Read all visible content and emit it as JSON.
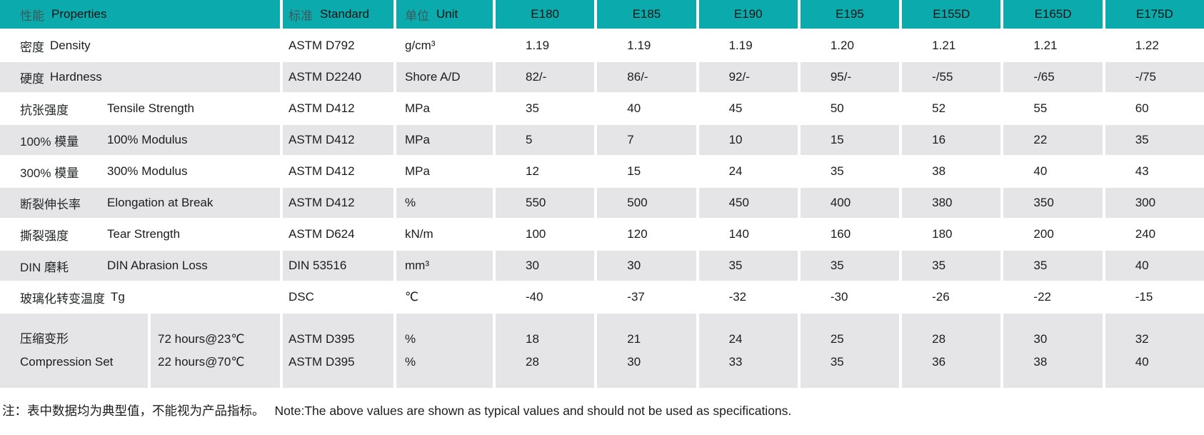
{
  "table": {
    "header": {
      "property": {
        "zh": "性能",
        "en": "Properties"
      },
      "standard": {
        "zh": "标准",
        "en": "Standard"
      },
      "unit": {
        "zh": "单位",
        "en": "Unit"
      },
      "grades": [
        "E180",
        "E185",
        "E190",
        "E195",
        "E155D",
        "E165D",
        "E175D"
      ]
    },
    "rows": [
      {
        "zh": "密度",
        "en": "Density",
        "tab": false,
        "standard": "ASTM D792",
        "unit": "g/cm³",
        "values": [
          "1.19",
          "1.19",
          "1.19",
          "1.20",
          "1.21",
          "1.21",
          "1.22"
        ]
      },
      {
        "zh": "硬度",
        "en": "Hardness",
        "tab": false,
        "standard": "ASTM D2240",
        "unit": "Shore A/D",
        "values": [
          "82/-",
          "86/-",
          "92/-",
          "95/-",
          "-/55",
          "-/65",
          "-/75"
        ]
      },
      {
        "zh": "抗张强度",
        "en": "Tensile Strength",
        "tab": true,
        "standard": "ASTM D412",
        "unit": "MPa",
        "values": [
          "35",
          "40",
          "45",
          "50",
          "52",
          "55",
          "60"
        ]
      },
      {
        "zh": "100% 模量",
        "en": "100% Modulus",
        "tab": true,
        "standard": "ASTM D412",
        "unit": "MPa",
        "values": [
          "5",
          "7",
          "10",
          "15",
          "16",
          "22",
          "35"
        ]
      },
      {
        "zh": "300% 模量",
        "en": "300% Modulus",
        "tab": true,
        "standard": "ASTM D412",
        "unit": "MPa",
        "values": [
          "12",
          "15",
          "24",
          "35",
          "38",
          "40",
          "43"
        ]
      },
      {
        "zh": "断裂伸长率",
        "en": "Elongation at Break",
        "tab": true,
        "standard": "ASTM D412",
        "unit": "%",
        "values": [
          "550",
          "500",
          "450",
          "400",
          "380",
          "350",
          "300"
        ]
      },
      {
        "zh": "撕裂强度",
        "en": "Tear Strength",
        "tab": true,
        "standard": "ASTM D624",
        "unit": "kN/m",
        "values": [
          "100",
          "120",
          "140",
          "160",
          "180",
          "200",
          "240"
        ]
      },
      {
        "zh": "DIN 磨耗",
        "en": "DIN Abrasion Loss",
        "tab": true,
        "standard": "DIN 53516",
        "unit": "mm³",
        "values": [
          "30",
          "30",
          "35",
          "35",
          "35",
          "35",
          "40"
        ]
      },
      {
        "zh": "玻璃化转变温度",
        "en": "Tg",
        "tab": false,
        "standard": "DSC",
        "unit": "℃",
        "values": [
          "-40",
          "-37",
          "-32",
          "-30",
          "-26",
          "-22",
          "-15"
        ]
      }
    ],
    "compression": {
      "names": [
        "压缩变形",
        "Compression Set"
      ],
      "conditions": [
        "72 hours@23℃",
        "22 hours@70℃"
      ],
      "standards": [
        "ASTM D395",
        "ASTM D395"
      ],
      "units": [
        "%",
        "%"
      ],
      "values": [
        [
          "18",
          "28"
        ],
        [
          "21",
          "30"
        ],
        [
          "24",
          "33"
        ],
        [
          "25",
          "35"
        ],
        [
          "28",
          "36"
        ],
        [
          "30",
          "38"
        ],
        [
          "32",
          "40"
        ]
      ]
    }
  },
  "footnote": {
    "zh": "注：表中数据均为典型值，不能视为产品指标。",
    "en": "Note:The above values are shown as typical values and should not be used as specifications."
  },
  "colors": {
    "header_teal": "#0baaad",
    "row_gray": "#e5e5e7"
  }
}
